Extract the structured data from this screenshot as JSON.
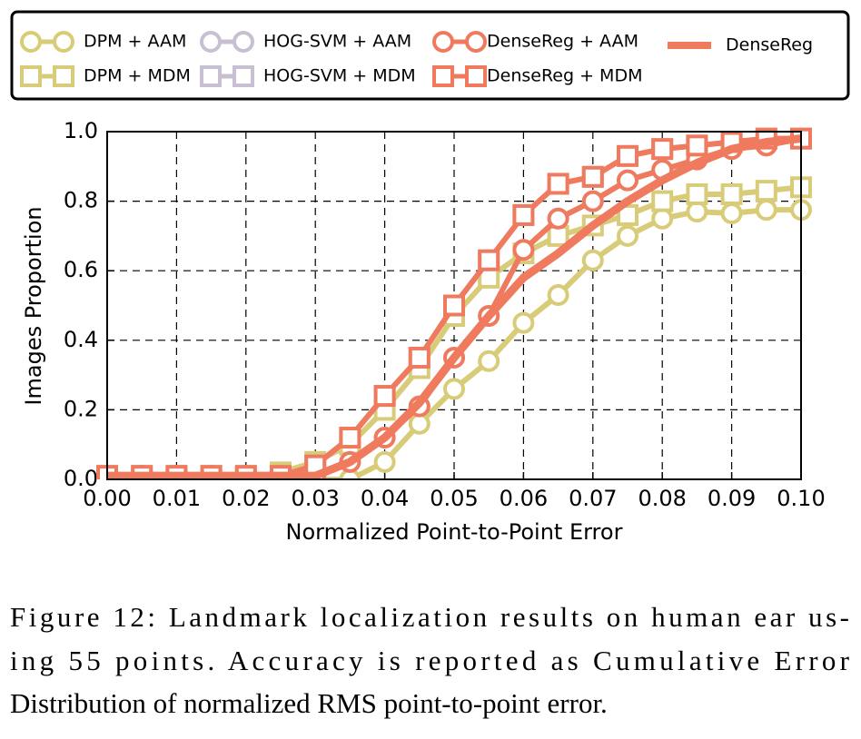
{
  "chart_data": {
    "type": "line",
    "xlabel": "Normalized Point-to-Point Error",
    "ylabel": "Images Proportion",
    "x": [
      0,
      0.005,
      0.01,
      0.015,
      0.02,
      0.025,
      0.03,
      0.035,
      0.04,
      0.045,
      0.05,
      0.055,
      0.06,
      0.065,
      0.07,
      0.075,
      0.08,
      0.085,
      0.09,
      0.095,
      0.1
    ],
    "series": [
      {
        "name": "DPM + AAM",
        "color": "#d8cc78",
        "marker": "circle",
        "values": [
          0,
          0,
          0,
          0,
          0,
          0,
          0,
          0,
          0.05,
          0.16,
          0.26,
          0.34,
          0.45,
          0.53,
          0.63,
          0.7,
          0.75,
          0.77,
          0.765,
          0.775,
          0.775
        ]
      },
      {
        "name": "DPM + MDM",
        "color": "#d8cc78",
        "marker": "square",
        "values": [
          0,
          0,
          0,
          0,
          0,
          0.02,
          0.05,
          0.1,
          0.2,
          0.32,
          0.47,
          0.58,
          0.65,
          0.7,
          0.73,
          0.76,
          0.8,
          0.82,
          0.82,
          0.83,
          0.84
        ]
      },
      {
        "name": "HOG-SVM + AAM",
        "color": "#c9bfd2",
        "marker": "circle",
        "values": [
          0.01,
          0.01,
          0.01,
          0.01,
          0.01,
          0.01,
          0.01,
          0.05,
          0.12,
          0.21,
          0.35,
          0.47,
          0.66,
          0.75,
          0.8,
          0.86,
          0.89,
          0.92,
          0.95,
          0.96,
          0.98
        ]
      },
      {
        "name": "HOG-SVM + MDM",
        "color": "#c9bfd2",
        "marker": "square",
        "values": [
          0.01,
          0.01,
          0.01,
          0.01,
          0.01,
          0.01,
          0.04,
          0.12,
          0.24,
          0.35,
          0.5,
          0.63,
          0.76,
          0.85,
          0.87,
          0.93,
          0.95,
          0.96,
          0.97,
          0.98,
          0.98
        ]
      },
      {
        "name": "DenseReg + AAM",
        "color": "#ef7a5e",
        "marker": "circle",
        "values": [
          0.01,
          0.01,
          0.01,
          0.01,
          0.01,
          0.01,
          0.01,
          0.05,
          0.12,
          0.21,
          0.35,
          0.47,
          0.66,
          0.75,
          0.8,
          0.86,
          0.89,
          0.92,
          0.95,
          0.96,
          0.98
        ]
      },
      {
        "name": "DenseReg + MDM",
        "color": "#ef7a5e",
        "marker": "square",
        "values": [
          0.01,
          0.01,
          0.01,
          0.01,
          0.01,
          0.01,
          0.04,
          0.12,
          0.24,
          0.35,
          0.5,
          0.63,
          0.76,
          0.85,
          0.87,
          0.93,
          0.95,
          0.96,
          0.97,
          0.98,
          0.98
        ]
      },
      {
        "name": "DenseReg",
        "color": "#ef7a5e",
        "marker": "none",
        "values": [
          0.01,
          0.01,
          0.01,
          0.01,
          0.01,
          0.01,
          0.01,
          0.05,
          0.12,
          0.22,
          0.35,
          0.47,
          0.58,
          0.65,
          0.73,
          0.8,
          0.86,
          0.91,
          0.95,
          0.97,
          0.98
        ]
      }
    ],
    "xlim": [
      0,
      0.1
    ],
    "xticks": [
      {
        "value": 0,
        "label": "0.00"
      },
      {
        "value": 0.01,
        "label": "0.01"
      },
      {
        "value": 0.02,
        "label": "0.02"
      },
      {
        "value": 0.03,
        "label": "0.03"
      },
      {
        "value": 0.04,
        "label": "0.04"
      },
      {
        "value": 0.05,
        "label": "0.05"
      },
      {
        "value": 0.06,
        "label": "0.06"
      },
      {
        "value": 0.07,
        "label": "0.07"
      },
      {
        "value": 0.08,
        "label": "0.08"
      },
      {
        "value": 0.09,
        "label": "0.09"
      },
      {
        "value": 0.1,
        "label": "0.10"
      }
    ],
    "ylim": [
      0,
      1
    ],
    "yticks": [
      {
        "value": 0,
        "label": "0.0"
      },
      0.2,
      0.4,
      0.6,
      0.8,
      {
        "value": 1,
        "label": "1.0"
      }
    ],
    "grid": true,
    "legend": "top",
    "caption_lines": [
      "Figure 12: Landmark localization results on human ear us-",
      "ing 55 points.  Accuracy is reported as Cumulative Error",
      "Distribution of normalized RMS point-to-point error."
    ]
  }
}
